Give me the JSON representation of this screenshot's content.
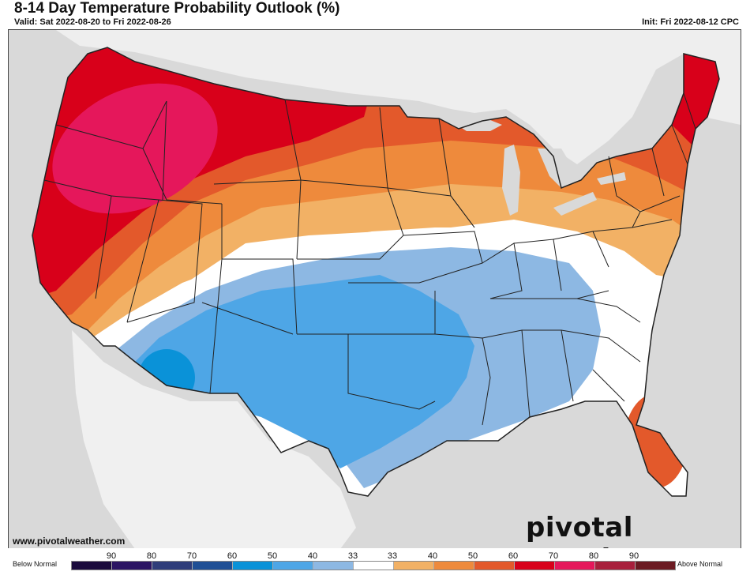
{
  "header": {
    "title": "8-14 Day Temperature Probability Outlook (%)",
    "valid": "Valid: Sat 2022-08-20 to Fri 2022-08-26",
    "init": "Init: Fri 2022-08-12 CPC"
  },
  "footer": {
    "url": "www.pivotalweather.com",
    "brand": "pivotal weather"
  },
  "legend": {
    "left_label": "Below Normal",
    "right_label": "Above Normal",
    "tick_labels": [
      "90",
      "80",
      "70",
      "60",
      "50",
      "40",
      "33",
      "33",
      "40",
      "50",
      "60",
      "70",
      "80",
      "90"
    ],
    "colors": [
      "#1a0a3c",
      "#2b1463",
      "#2f3d7a",
      "#1f4f95",
      "#0a92d8",
      "#4ea6e6",
      "#8db8e3",
      "#ffffff",
      "#f2b165",
      "#ee8a3c",
      "#e3592b",
      "#d8001a",
      "#e5175b",
      "#a81f3c",
      "#6b1a22"
    ]
  },
  "map": {
    "colors": {
      "background": "#d9d9d9",
      "land": "#ffffff",
      "water": "#d9d9d9",
      "below_33": "#8db8e3",
      "below_40": "#4ea6e6",
      "below_50": "#0a92d8",
      "above_33": "#f2b165",
      "above_40": "#ee8a3c",
      "above_50": "#e3592b",
      "above_60": "#d8001a",
      "above_70": "#e5175b"
    }
  }
}
